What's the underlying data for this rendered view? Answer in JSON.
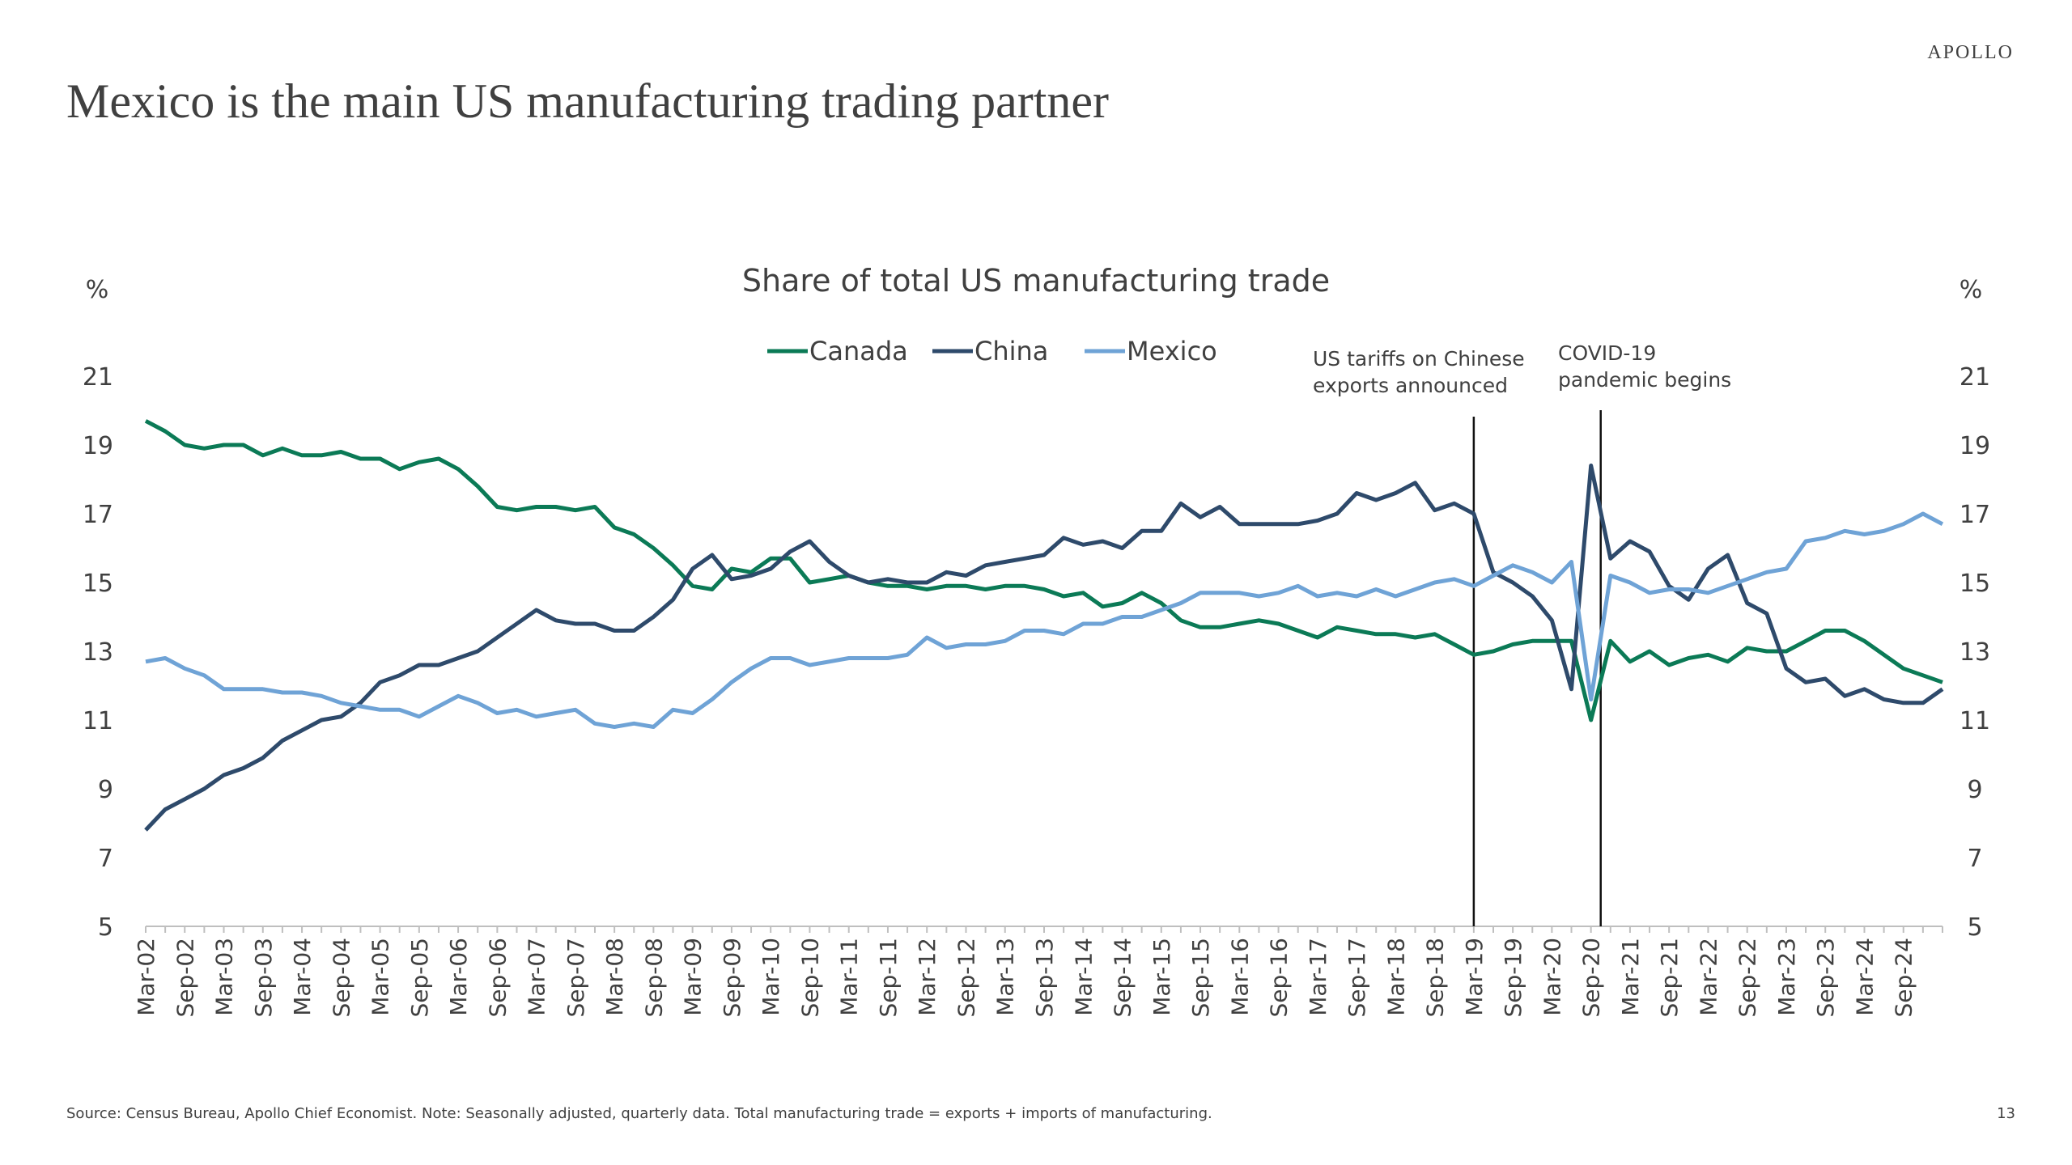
{
  "brand": "APOLLO",
  "chart_data": {
    "type": "line",
    "title": "Mexico is the main US manufacturing trading partner",
    "subtitle": "Share of total US manufacturing trade",
    "y_label": "%",
    "y2_label": "%",
    "categories": [
      "Mar-02",
      null,
      "Sep-02",
      null,
      "Mar-03",
      null,
      "Sep-03",
      null,
      "Mar-04",
      null,
      "Sep-04",
      null,
      "Mar-05",
      null,
      "Sep-05",
      null,
      "Mar-06",
      null,
      "Sep-06",
      null,
      "Mar-07",
      null,
      "Sep-07",
      null,
      "Mar-08",
      null,
      "Sep-08",
      null,
      "Mar-09",
      null,
      "Sep-09",
      null,
      "Mar-10",
      null,
      "Sep-10",
      null,
      "Mar-11",
      null,
      "Sep-11",
      null,
      "Mar-12",
      null,
      "Sep-12",
      null,
      "Mar-13",
      null,
      "Sep-13",
      null,
      "Mar-14",
      null,
      "Sep-14",
      null,
      "Mar-15",
      null,
      "Sep-15",
      null,
      "Mar-16",
      null,
      "Sep-16",
      null,
      "Mar-17",
      null,
      "Sep-17",
      null,
      "Mar-18",
      null,
      "Sep-18",
      null,
      "Mar-19",
      null,
      "Sep-19",
      null,
      "Mar-20",
      null,
      "Sep-20",
      null,
      "Mar-21",
      null,
      "Sep-21",
      null,
      "Mar-22",
      null,
      "Sep-22",
      null,
      "Mar-23",
      null,
      "Sep-23",
      null,
      "Mar-24",
      null,
      "Sep-24",
      null,
      null
    ],
    "series": [
      {
        "name": "Canada",
        "color": "#0b7a56",
        "values": [
          19.7,
          19.4,
          19.0,
          18.9,
          19.0,
          19.0,
          18.7,
          18.9,
          18.7,
          18.7,
          18.8,
          18.6,
          18.6,
          18.3,
          18.5,
          18.6,
          18.3,
          17.8,
          17.2,
          17.1,
          17.2,
          17.2,
          17.1,
          17.2,
          16.6,
          16.4,
          16.0,
          15.5,
          14.9,
          14.8,
          15.4,
          15.3,
          15.7,
          15.7,
          15.0,
          15.1,
          15.2,
          15.0,
          14.9,
          14.9,
          14.8,
          14.9,
          14.9,
          14.8,
          14.9,
          14.9,
          14.8,
          14.6,
          14.7,
          14.3,
          14.4,
          14.7,
          14.4,
          13.9,
          13.7,
          13.7,
          13.8,
          13.9,
          13.8,
          13.6,
          13.4,
          13.7,
          13.6,
          13.5,
          13.5,
          13.4,
          13.5,
          13.2,
          12.9,
          13.0,
          13.2,
          13.3,
          13.3,
          13.3,
          11.0,
          13.3,
          12.7,
          13.0,
          12.6,
          12.8,
          12.9,
          12.7,
          13.1,
          13.0,
          13.0,
          13.3,
          13.6,
          13.6,
          13.3,
          12.9,
          12.5,
          12.3,
          12.1
        ]
      },
      {
        "name": "China",
        "color": "#2e4a6b",
        "values": [
          7.8,
          8.4,
          8.7,
          9.0,
          9.4,
          9.6,
          9.9,
          10.4,
          10.7,
          11.0,
          11.1,
          11.5,
          12.1,
          12.3,
          12.6,
          12.6,
          12.8,
          13.0,
          13.4,
          13.8,
          14.2,
          13.9,
          13.8,
          13.8,
          13.6,
          13.6,
          14.0,
          14.5,
          15.4,
          15.8,
          15.1,
          15.2,
          15.4,
          15.9,
          16.2,
          15.6,
          15.2,
          15.0,
          15.1,
          15.0,
          15.0,
          15.3,
          15.2,
          15.5,
          15.6,
          15.7,
          15.8,
          16.3,
          16.1,
          16.2,
          16.0,
          16.5,
          16.5,
          17.3,
          16.9,
          17.2,
          16.7,
          16.7,
          16.7,
          16.7,
          16.8,
          17.0,
          17.6,
          17.4,
          17.6,
          17.9,
          17.1,
          17.3,
          17.0,
          15.3,
          15.0,
          14.6,
          13.9,
          11.9,
          18.4,
          15.7,
          16.2,
          15.9,
          14.9,
          14.5,
          15.4,
          15.8,
          14.4,
          14.1,
          12.5,
          12.1,
          12.2,
          11.7,
          11.9,
          11.6,
          11.5,
          11.5,
          11.9
        ]
      },
      {
        "name": "Mexico",
        "color": "#6fa3d6",
        "values": [
          12.7,
          12.8,
          12.5,
          12.3,
          11.9,
          11.9,
          11.9,
          11.8,
          11.8,
          11.7,
          11.5,
          11.4,
          11.3,
          11.3,
          11.1,
          11.4,
          11.7,
          11.5,
          11.2,
          11.3,
          11.1,
          11.2,
          11.3,
          10.9,
          10.8,
          10.9,
          10.8,
          11.3,
          11.2,
          11.6,
          12.1,
          12.5,
          12.8,
          12.8,
          12.6,
          12.7,
          12.8,
          12.8,
          12.8,
          12.9,
          13.4,
          13.1,
          13.2,
          13.2,
          13.3,
          13.6,
          13.6,
          13.5,
          13.8,
          13.8,
          14.0,
          14.0,
          14.2,
          14.4,
          14.7,
          14.7,
          14.7,
          14.6,
          14.7,
          14.9,
          14.6,
          14.7,
          14.6,
          14.8,
          14.6,
          14.8,
          15.0,
          15.1,
          14.9,
          15.2,
          15.5,
          15.3,
          15.0,
          15.6,
          11.6,
          15.2,
          15.0,
          14.7,
          14.8,
          14.8,
          14.7,
          14.9,
          15.1,
          15.3,
          15.4,
          16.2,
          16.3,
          16.5,
          16.4,
          16.5,
          16.7,
          17.0,
          16.7
        ]
      }
    ],
    "ylim": [
      5,
      21
    ],
    "yticks": [
      5,
      7,
      9,
      11,
      13,
      15,
      17,
      19,
      21
    ],
    "y2lim": [
      5,
      21
    ],
    "y2ticks": [
      5,
      7,
      9,
      11,
      13,
      15,
      17,
      19,
      21
    ],
    "legend": "top",
    "annotations": [
      {
        "lines": [
          "US tariffs on Chinese",
          "exports announced"
        ]
      },
      {
        "lines": [
          "COVID-19",
          "pandemic begins"
        ]
      }
    ],
    "source": "Source: Census Bureau, Apollo Chief Economist. Note: Seasonally adjusted, quarterly data. Total manufacturing trade = exports + imports of manufacturing.",
    "page_number": "13"
  }
}
